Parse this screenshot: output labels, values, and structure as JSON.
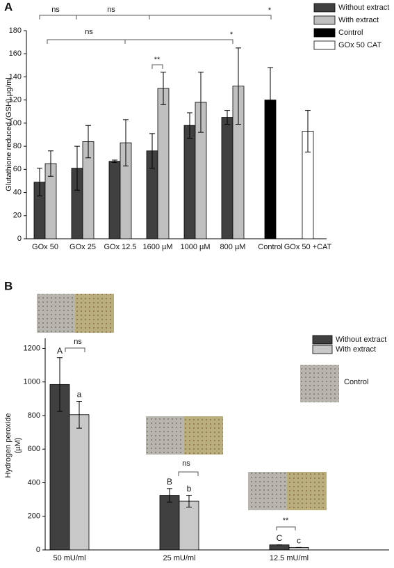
{
  "chart_data": [
    {
      "type": "bar",
      "label": "A",
      "ylabel": "Glutathione reduced (GSH) µg/ml",
      "categories": [
        "GOx 50",
        "GOx 25",
        "GOx 12.5",
        "1600 µM",
        "1000 µM",
        "800 µM",
        "Control",
        "GOx 50 +CAT"
      ],
      "series": [
        {
          "name": "Without extract",
          "color": "#404040",
          "values": [
            49,
            61,
            67,
            76,
            98,
            105,
            null,
            null
          ],
          "errors": [
            12,
            19,
            1,
            15,
            11,
            6,
            null,
            null
          ]
        },
        {
          "name": "With extract",
          "color": "#c0c0c0",
          "values": [
            65,
            84,
            83,
            130,
            118,
            132,
            null,
            null
          ],
          "errors": [
            11,
            14,
            20,
            14,
            26,
            33,
            null,
            null
          ]
        },
        {
          "name": "Control",
          "color": "#000000",
          "values": [
            null,
            null,
            null,
            null,
            null,
            null,
            120,
            null
          ],
          "errors": [
            null,
            null,
            null,
            null,
            null,
            null,
            28,
            null
          ]
        },
        {
          "name": "GOx 50 CAT",
          "color": "#ffffff",
          "values": [
            null,
            null,
            null,
            null,
            null,
            null,
            null,
            93
          ],
          "errors": [
            null,
            null,
            null,
            null,
            null,
            null,
            null,
            18
          ]
        }
      ],
      "ylim": [
        0,
        180
      ],
      "yticks": [
        0,
        20,
        40,
        60,
        80,
        100,
        120,
        140,
        160,
        180
      ],
      "annotations": [
        "ns",
        "ns",
        "*",
        "ns",
        "*",
        "**"
      ]
    },
    {
      "type": "bar",
      "label": "B",
      "ylabel": [
        "Hydrogen peroxide",
        "(µM)"
      ],
      "categories": [
        "50 mU/ml",
        "25 mU/ml",
        "12.5 mU/ml"
      ],
      "series": [
        {
          "name": "Without extract",
          "color": "#404040",
          "values": [
            985,
            325,
            30
          ],
          "errors": [
            160,
            40,
            0
          ],
          "letters": [
            "A",
            "B",
            "C"
          ]
        },
        {
          "name": "With extract",
          "color": "#c8c8c8",
          "values": [
            805,
            290,
            15
          ],
          "errors": [
            80,
            35,
            0
          ],
          "letters": [
            "a",
            "b",
            "c"
          ]
        }
      ],
      "ylim": [
        0,
        1260
      ],
      "yticks": [
        0,
        200,
        400,
        600,
        800,
        1000,
        1200
      ],
      "annotations": [
        "ns",
        "ns",
        "**"
      ],
      "image_label": "Control"
    }
  ]
}
